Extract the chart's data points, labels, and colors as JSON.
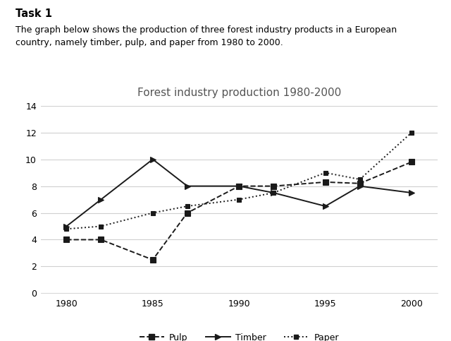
{
  "title": "Forest industry production 1980-2000",
  "task_title": "Task 1",
  "task_desc": "The graph below shows the production of three forest industry products in a European\ncountry, namely timber, pulp, and paper from 1980 to 2000.",
  "years": [
    1980,
    1982,
    1985,
    1987,
    1990,
    1992,
    1995,
    1997,
    2000
  ],
  "pulp": [
    4.0,
    4.0,
    2.5,
    6.0,
    8.0,
    8.0,
    8.3,
    8.2,
    9.8
  ],
  "timber": [
    5.0,
    7.0,
    10.0,
    8.0,
    8.0,
    7.5,
    6.5,
    8.0,
    7.5
  ],
  "paper": [
    4.8,
    5.0,
    6.0,
    6.5,
    7.0,
    7.5,
    9.0,
    8.5,
    12.0
  ],
  "ylim": [
    0,
    14
  ],
  "yticks": [
    0,
    2,
    4,
    6,
    8,
    10,
    12,
    14
  ],
  "xticks": [
    1980,
    1985,
    1990,
    1995,
    2000
  ],
  "bg_color": "#ffffff",
  "line_color": "#1a1a1a",
  "grid_color": "#d0d0d0",
  "title_color": "#555555"
}
